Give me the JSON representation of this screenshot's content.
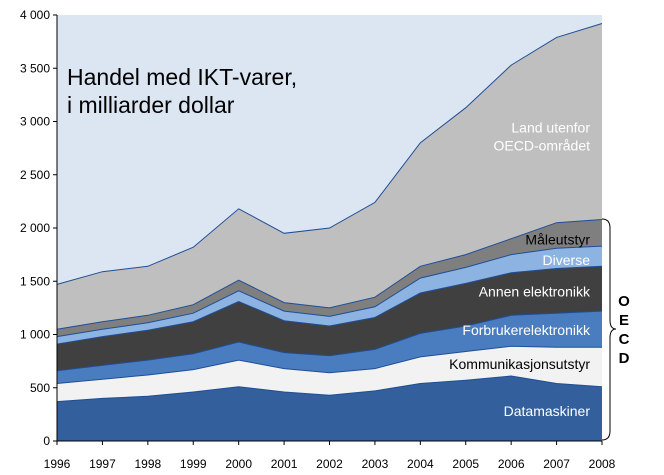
{
  "chart_data": {
    "type": "area",
    "stacked": true,
    "title_lines": [
      "Handel med IKT-varer,",
      "i milliarder dollar"
    ],
    "x": [
      1996,
      1997,
      1998,
      1999,
      2000,
      2001,
      2002,
      2003,
      2004,
      2005,
      2006,
      2007,
      2008
    ],
    "ylim": [
      0,
      4000
    ],
    "yticks": [
      "0",
      "500",
      "1 000",
      "1 500",
      "2 000",
      "2 500",
      "3 000",
      "3 500",
      "4 000"
    ],
    "xlabel": "",
    "ylabel": "",
    "grid": false,
    "plot_background": "#dce6f2",
    "series": [
      {
        "name": "Datamaskiner",
        "color": "#335f9c",
        "label_color": "#ffffff",
        "values": [
          370,
          400,
          420,
          460,
          510,
          460,
          430,
          470,
          540,
          570,
          610,
          540,
          510
        ]
      },
      {
        "name": "Kommunikasjonsutstyr",
        "color": "#f2f2f2",
        "label_color": "#000000",
        "values": [
          170,
          180,
          200,
          210,
          250,
          220,
          210,
          210,
          250,
          270,
          280,
          340,
          370
        ]
      },
      {
        "name": "Forbrukerelektronikk",
        "color": "#4a7dc0",
        "label_color": "#ffffff",
        "values": [
          120,
          130,
          140,
          150,
          170,
          150,
          160,
          180,
          220,
          240,
          290,
          320,
          340
        ]
      },
      {
        "name": "Annen elektronikk",
        "color": "#404040",
        "label_color": "#ffffff",
        "values": [
          250,
          270,
          280,
          300,
          380,
          300,
          280,
          300,
          380,
          400,
          400,
          420,
          420
        ]
      },
      {
        "name": "Diverse",
        "color": "#8db3e2",
        "label_color": "#ffffff",
        "values": [
          70,
          70,
          70,
          80,
          100,
          90,
          90,
          100,
          140,
          150,
          170,
          190,
          190
        ]
      },
      {
        "name": "Måleutstyr",
        "color": "#7f7f7f",
        "label_color": "#000000",
        "values": [
          70,
          70,
          70,
          80,
          100,
          80,
          80,
          90,
          110,
          120,
          150,
          240,
          250
        ]
      },
      {
        "name": "Land utenfor OECD-området",
        "label_lines": [
          "Land utenfor",
          "OECD-området"
        ],
        "color": "#bfbfbf",
        "label_color": "#ffffff",
        "values": [
          420,
          470,
          460,
          540,
          670,
          650,
          750,
          890,
          1160,
          1380,
          1630,
          1740,
          1840
        ]
      }
    ],
    "outline_color": "#1f4e96",
    "bracket_label": [
      "O",
      "E",
      "C",
      "D"
    ]
  }
}
